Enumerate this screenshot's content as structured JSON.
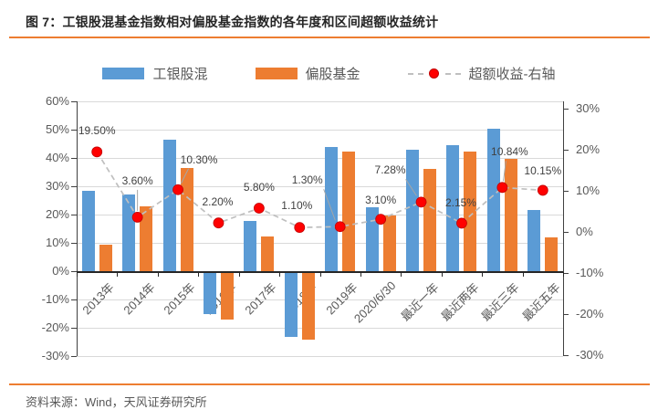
{
  "title": "图 7：工银股混基金指数相对偏股基金指数的各年度和区间超额收益统计",
  "source": "资料来源：Wind，天风证券研究所",
  "legend": {
    "items": [
      "工银股混",
      "偏股基金",
      "超额收益-右轴"
    ]
  },
  "chart_data": {
    "type": "bar",
    "title": "工银股混基金指数相对偏股基金指数的各年度和区间超额收益统计",
    "categories": [
      "2013年",
      "2014年",
      "2015年",
      "2016年",
      "2017年",
      "2018年",
      "2019年",
      "2020/6/30",
      "最近一年",
      "最近两年",
      "最近三年",
      "最近五年"
    ],
    "series": [
      {
        "name": "工银股混",
        "type": "bar",
        "axis": "left",
        "color": "#5B9BD5",
        "values": [
          28.5,
          27.0,
          46.5,
          -14.8,
          17.8,
          -23.0,
          43.8,
          22.6,
          43.0,
          44.6,
          50.4,
          21.7
        ]
      },
      {
        "name": "偏股基金",
        "type": "bar",
        "axis": "left",
        "color": "#ED7D31",
        "values": [
          9.5,
          23.0,
          36.5,
          -16.7,
          12.3,
          -23.8,
          42.3,
          19.6,
          36.0,
          42.4,
          39.7,
          11.9
        ]
      },
      {
        "name": "超额收益-右轴",
        "type": "line",
        "axis": "right",
        "color": "#FF0000",
        "line_color": "#BFBFBF",
        "line_style": "dashed",
        "values": [
          19.5,
          3.6,
          10.3,
          2.2,
          5.8,
          1.1,
          1.3,
          3.1,
          7.28,
          2.15,
          10.84,
          10.15
        ],
        "labels": [
          "19.50%",
          "3.60%",
          "10.30%",
          "2.20%",
          "5.80%",
          "1.10%",
          "1.30%",
          "3.10%",
          "7.28%",
          "2.15%",
          "10.84%",
          "10.15%"
        ]
      }
    ],
    "left_axis": {
      "min": -30,
      "max": 60,
      "tick_labels": [
        "60%",
        "50%",
        "40%",
        "30%",
        "20%",
        "10%",
        "0%",
        "-10%",
        "-20%",
        "-30%"
      ]
    },
    "right_axis": {
      "min": -30,
      "max": 30,
      "tick_labels": [
        "30%",
        "20%",
        "10%",
        "0%",
        "-10%",
        "-20%",
        "-30%"
      ]
    },
    "grid": true,
    "legend_position": "top"
  },
  "colors": {
    "accent_rule": "#ED7D31",
    "bar_blue": "#5B9BD5",
    "bar_orange": "#ED7D31",
    "marker_red": "#FF0000",
    "dash_gray": "#BFBFBF",
    "grid_gray": "#D9D9D9",
    "text_gray": "#595959"
  }
}
